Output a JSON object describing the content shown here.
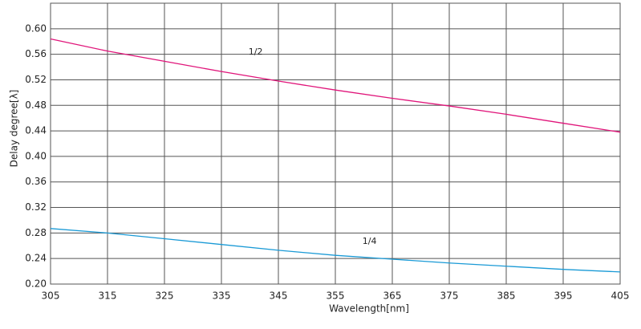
{
  "chart_data": {
    "type": "line",
    "x_label": "Wavelength[nm]",
    "y_label": "Delay degree[λ]",
    "x": [
      305,
      315,
      325,
      335,
      345,
      355,
      365,
      375,
      385,
      395,
      405
    ],
    "series": [
      {
        "name": "1/2",
        "color": "#e0157a",
        "values": [
          0.584,
          0.565,
          0.549,
          0.533,
          0.518,
          0.504,
          0.491,
          0.479,
          0.466,
          0.452,
          0.438
        ]
      },
      {
        "name": "1/4",
        "color": "#1a9ad6",
        "values": [
          0.287,
          0.28,
          0.271,
          0.262,
          0.253,
          0.245,
          0.239,
          0.233,
          0.228,
          0.223,
          0.219
        ]
      }
    ],
    "xlim": [
      305,
      405
    ],
    "xticks": [
      305,
      315,
      325,
      335,
      345,
      355,
      365,
      375,
      385,
      395,
      405
    ],
    "ylim": [
      0.2,
      0.64
    ],
    "yticks": [
      {
        "value": 0.2,
        "label": "0.20"
      },
      {
        "value": 0.24,
        "label": "0.24"
      },
      {
        "value": 0.28,
        "label": "0.28"
      },
      {
        "value": 0.32,
        "label": "0.32"
      },
      {
        "value": 0.36,
        "label": "0.36"
      },
      {
        "value": 0.4,
        "label": "0.40"
      },
      {
        "value": 0.44,
        "label": "0.44"
      },
      {
        "value": 0.48,
        "label": "0.48"
      },
      {
        "value": 0.52,
        "label": "0.52"
      },
      {
        "value": 0.56,
        "label": "0.56"
      },
      {
        "value": 0.6,
        "label": "0.60"
      }
    ],
    "grid": true
  }
}
